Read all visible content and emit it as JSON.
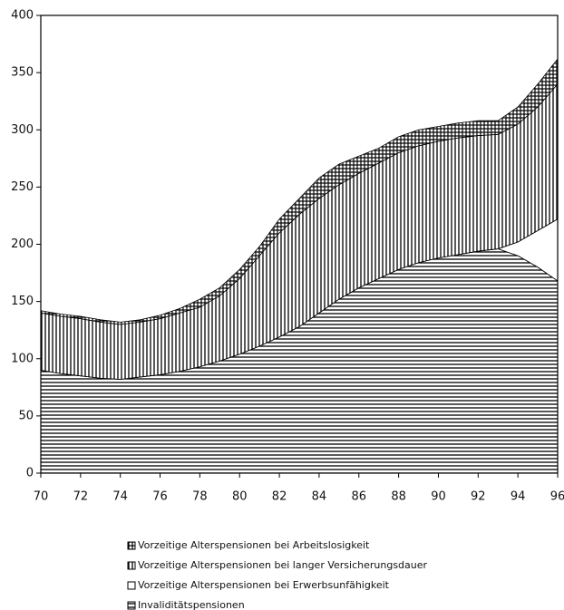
{
  "chart_data": {
    "type": "stacked-area",
    "x": [
      70,
      71,
      72,
      73,
      74,
      75,
      76,
      77,
      78,
      79,
      80,
      81,
      82,
      83,
      84,
      85,
      86,
      87,
      88,
      89,
      90,
      91,
      92,
      93,
      94,
      95,
      96
    ],
    "series": [
      {
        "name": "Invaliditätspensionen",
        "color": "#000000",
        "values": [
          90,
          87,
          85,
          83,
          82,
          84,
          86,
          89,
          93,
          98,
          104,
          111,
          119,
          128,
          140,
          152,
          162,
          170,
          178,
          184,
          188,
          191,
          194,
          196,
          190,
          180,
          168
        ]
      },
      {
        "name": "Vorzeitige Alterspensionen bei Erwerbsunfähigkeit",
        "color": "#000000",
        "values": [
          0,
          0,
          0,
          0,
          0,
          0,
          0,
          0,
          0,
          0,
          0,
          0,
          0,
          0,
          0,
          0,
          0,
          0,
          0,
          0,
          0,
          0,
          0,
          0,
          12,
          32,
          54
        ]
      },
      {
        "name": "Vorzeitige Alterspensionen bei langer Versicherungsdauer",
        "color": "#000000",
        "values": [
          50,
          50,
          50,
          49,
          48,
          48,
          49,
          51,
          52,
          57,
          66,
          79,
          91,
          98,
          100,
          100,
          100,
          101,
          102,
          102,
          102,
          102,
          101,
          100,
          103,
          108,
          118
        ]
      },
      {
        "name": "Vorzeitige Alterspensionen bei Arbeitslosigkeit",
        "color": "#000000",
        "values": [
          2,
          2,
          2,
          2,
          2,
          2,
          3,
          4,
          7,
          7,
          8,
          8,
          12,
          14,
          18,
          18,
          15,
          13,
          14,
          14,
          13,
          13,
          13,
          12,
          15,
          20,
          22
        ]
      }
    ],
    "xlim": [
      70,
      96
    ],
    "xticks": [
      70,
      72,
      74,
      76,
      78,
      80,
      82,
      84,
      86,
      88,
      90,
      92,
      94,
      96
    ],
    "ylim": [
      0,
      400
    ],
    "yticks": [
      0,
      50,
      100,
      150,
      200,
      250,
      300,
      350,
      400
    ]
  }
}
